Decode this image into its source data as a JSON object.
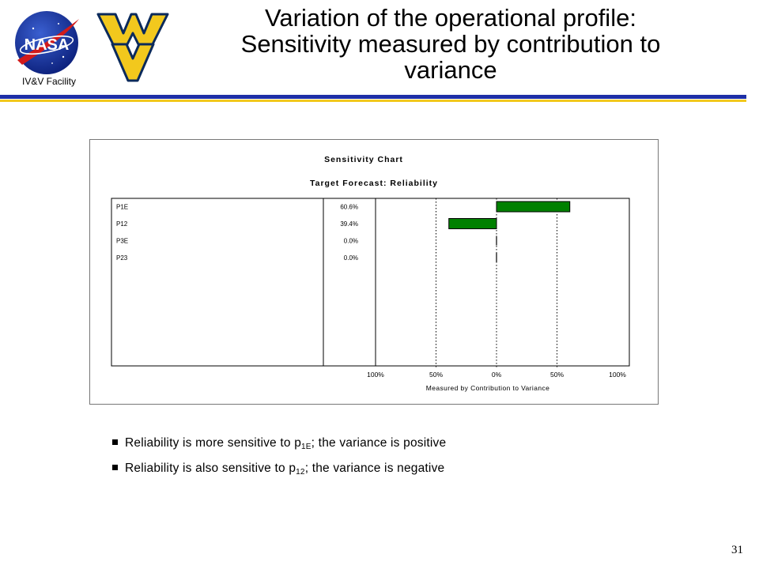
{
  "header": {
    "logo_text": "NASA",
    "facility": "IV&V Facility",
    "title_lines": [
      "Variation of the operational profile:",
      "Sensitivity measured by contribution to",
      "variance"
    ]
  },
  "colors": {
    "rule_blue": "#1e2fa6",
    "rule_yellow": "#f2c81d",
    "bar_green": "#008000",
    "wv_gold": "#f2c81d",
    "wv_navy": "#0b2a5b"
  },
  "chart_data": {
    "type": "bar",
    "orientation": "horizontal",
    "title": "Sensitivity Chart",
    "subtitle": "Target Forecast: Reliability",
    "categories": [
      "P1E",
      "P12",
      "P3E",
      "P23"
    ],
    "percent_labels": [
      "60.6%",
      "39.4%",
      "0.0%",
      "0.0%"
    ],
    "values": [
      0.606,
      -0.394,
      0.0,
      0.0
    ],
    "x_ticks": [
      "100%",
      "50%",
      "0%",
      "50%",
      "100%"
    ],
    "x_tick_values": [
      -1,
      -0.5,
      0,
      0.5,
      1
    ],
    "xlim": [
      -1,
      1
    ],
    "xlabel": "Measured by Contribution to Variance",
    "grid": "dotted vertical at 50%, 0%, 50%"
  },
  "bullets": [
    {
      "pre": "Reliability is more sensitive to p",
      "sub": "1E",
      "post": ";  the variance is positive"
    },
    {
      "pre": "Reliability is also sensitive to p",
      "sub": "12",
      "post": ";  the variance is negative"
    }
  ],
  "footer": {
    "page_number": "31"
  }
}
